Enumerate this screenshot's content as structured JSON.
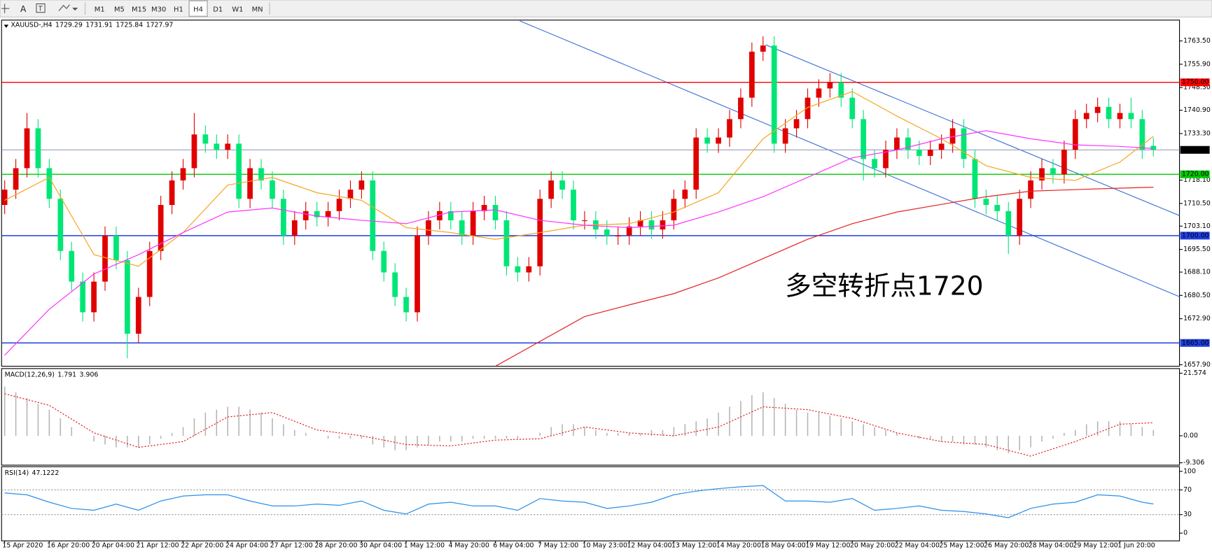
{
  "toolbar": {
    "timeframes": [
      "M1",
      "M5",
      "M15",
      "M30",
      "H1",
      "H4",
      "D1",
      "W1",
      "MN"
    ],
    "active": "H4"
  },
  "chart_data": [
    {
      "type": "candlestick",
      "symbol": "XAUUSD-,H4",
      "annotation": "多空转折点1720",
      "annotation_color": "#e8201a",
      "up_color": "#e00000",
      "down_color": "#00e676",
      "current_line_color": "#8c94b0",
      "ylim": [
        1657.4,
        1770.3
      ],
      "yticks": [
        {
          "value": 1763.5,
          "label": "1763.50"
        },
        {
          "value": 1755.9,
          "label": "1755.90"
        },
        {
          "value": 1748.3,
          "label": "1748.30"
        },
        {
          "value": 1740.9,
          "label": "1740.90"
        },
        {
          "value": 1733.3,
          "label": "1733.30"
        },
        {
          "value": 1718.1,
          "label": "1718.10"
        },
        {
          "value": 1710.5,
          "label": "1710.50"
        },
        {
          "value": 1703.1,
          "label": "1703.10"
        },
        {
          "value": 1695.5,
          "label": "1695.50"
        },
        {
          "value": 1688.1,
          "label": "1688.10"
        },
        {
          "value": 1680.5,
          "label": "1680.50"
        },
        {
          "value": 1672.9,
          "label": "1672.90"
        },
        {
          "value": 1657.9,
          "label": "1657.90"
        }
      ],
      "levels": [
        {
          "value": 1750,
          "label": "1750.00",
          "color": "#ff0000"
        },
        {
          "value": 1720,
          "label": "1720.00",
          "color": "#00c800"
        },
        {
          "value": 1700,
          "label": "1700.00",
          "color": "#1f3fe0"
        },
        {
          "value": 1665,
          "label": "1665.00",
          "color": "#1f3fe0"
        }
      ],
      "categories": [
        "15 Apr 2020",
        null,
        null,
        null,
        "16 Apr 20:00",
        null,
        null,
        null,
        "20 Apr 04:00",
        null,
        null,
        null,
        "21 Apr 12:00",
        null,
        null,
        null,
        "22 Apr 20:00",
        null,
        null,
        null,
        "24 Apr 04:00",
        null,
        null,
        null,
        "27 Apr 12:00",
        null,
        null,
        null,
        "28 Apr 20:00",
        null,
        null,
        null,
        "30 Apr 04:00",
        null,
        null,
        null,
        "1 May 12:00",
        null,
        null,
        null,
        "4 May 20:00",
        null,
        null,
        null,
        "6 May 04:00",
        null,
        null,
        null,
        "7 May 12:00",
        null,
        null,
        null,
        "10 May 23:00",
        null,
        null,
        null,
        "12 May 04:00",
        null,
        null,
        null,
        "13 May 12:00",
        null,
        null,
        null,
        "14 May 20:00",
        null,
        null,
        null,
        "18 May 04:00",
        null,
        null,
        null,
        "19 May 12:00",
        null,
        null,
        null,
        "20 May 20:00",
        null,
        null,
        null,
        "22 May 04:00",
        null,
        null,
        null,
        "25 May 12:00",
        null,
        null,
        null,
        "26 May 20:00",
        null,
        null,
        null,
        "28 May 04:00",
        null,
        null,
        null,
        "29 May 12:00",
        null,
        null,
        null,
        "1 Jun 20:00",
        null,
        null,
        null
      ],
      "open": [
        1710,
        1715,
        1722,
        1735,
        1722,
        1712,
        1695,
        1685,
        1675,
        1685,
        1700,
        1692,
        1668,
        1680,
        1695,
        1710,
        1718,
        1722,
        1733,
        1730,
        1728,
        1730,
        1712,
        1722,
        1718,
        1712,
        1700,
        1705,
        1708,
        1706,
        1708,
        1712,
        1715,
        1718,
        1695,
        1688,
        1680,
        1675,
        1700,
        1705,
        1708,
        1705,
        1700,
        1708,
        1710,
        1705,
        1690,
        1688,
        1690,
        1712,
        1718,
        1715,
        1705,
        1705,
        1702,
        1700,
        1700,
        1703,
        1705,
        1702,
        1705,
        1712,
        1715,
        1732,
        1730,
        1732,
        1738,
        1745,
        1760,
        1762,
        1730,
        1735,
        1738,
        1745,
        1748,
        1750,
        1745,
        1738,
        1725,
        1722,
        1728,
        1732,
        1728,
        1726,
        1728,
        1730,
        1735,
        1725,
        1712,
        1710,
        1708,
        1700,
        1712,
        1718,
        1722,
        1720,
        1728,
        1738,
        1740,
        1742,
        1738,
        1740,
        1738,
        1729.29
      ],
      "high": [
        1718,
        1725,
        1740,
        1738,
        1725,
        1715,
        1698,
        1688,
        1688,
        1703,
        1703,
        1695,
        1683,
        1698,
        1713,
        1721,
        1725,
        1740,
        1736,
        1733,
        1733,
        1733,
        1725,
        1725,
        1721,
        1715,
        1708,
        1711,
        1711,
        1711,
        1715,
        1718,
        1721,
        1721,
        1698,
        1691,
        1683,
        1703,
        1708,
        1711,
        1711,
        1708,
        1711,
        1713,
        1713,
        1708,
        1693,
        1693,
        1715,
        1721,
        1721,
        1718,
        1708,
        1708,
        1705,
        1703,
        1706,
        1708,
        1708,
        1708,
        1715,
        1718,
        1735,
        1735,
        1735,
        1741,
        1748,
        1763,
        1765,
        1765,
        1738,
        1741,
        1748,
        1751,
        1753,
        1753,
        1748,
        1741,
        1728,
        1731,
        1735,
        1735,
        1731,
        1731,
        1733,
        1738,
        1738,
        1728,
        1715,
        1713,
        1711,
        1715,
        1721,
        1725,
        1725,
        1731,
        1741,
        1743,
        1745,
        1745,
        1743,
        1745,
        1741,
        1731.91
      ],
      "low": [
        1707,
        1712,
        1719,
        1719,
        1709,
        1692,
        1682,
        1672,
        1672,
        1682,
        1689,
        1660,
        1665,
        1677,
        1692,
        1707,
        1715,
        1719,
        1727,
        1725,
        1725,
        1709,
        1709,
        1715,
        1709,
        1697,
        1697,
        1702,
        1703,
        1703,
        1705,
        1709,
        1712,
        1692,
        1685,
        1677,
        1672,
        1672,
        1697,
        1702,
        1702,
        1697,
        1697,
        1705,
        1702,
        1687,
        1685,
        1685,
        1687,
        1709,
        1712,
        1702,
        1702,
        1699,
        1697,
        1697,
        1697,
        1700,
        1699,
        1699,
        1702,
        1709,
        1712,
        1727,
        1727,
        1729,
        1735,
        1742,
        1757,
        1727,
        1727,
        1732,
        1735,
        1742,
        1745,
        1742,
        1735,
        1718,
        1719,
        1719,
        1725,
        1725,
        1723,
        1723,
        1725,
        1727,
        1722,
        1709,
        1707,
        1705,
        1694,
        1697,
        1709,
        1715,
        1717,
        1717,
        1725,
        1735,
        1737,
        1735,
        1735,
        1735,
        1725,
        1725.84
      ],
      "close": [
        1715,
        1722,
        1735,
        1722,
        1712,
        1695,
        1685,
        1675,
        1685,
        1700,
        1692,
        1668,
        1680,
        1695,
        1710,
        1718,
        1722,
        1733,
        1730,
        1728,
        1730,
        1712,
        1722,
        1718,
        1712,
        1700,
        1705,
        1708,
        1706,
        1708,
        1712,
        1715,
        1718,
        1695,
        1688,
        1680,
        1675,
        1700,
        1705,
        1708,
        1705,
        1700,
        1708,
        1710,
        1705,
        1690,
        1688,
        1690,
        1712,
        1718,
        1715,
        1705,
        1705,
        1702,
        1700,
        1700,
        1703,
        1705,
        1702,
        1705,
        1712,
        1715,
        1732,
        1730,
        1732,
        1738,
        1745,
        1760,
        1762,
        1730,
        1735,
        1738,
        1745,
        1748,
        1750,
        1745,
        1738,
        1725,
        1722,
        1728,
        1732,
        1728,
        1726,
        1728,
        1730,
        1735,
        1725,
        1712,
        1710,
        1708,
        1700,
        1712,
        1718,
        1722,
        1720,
        1728,
        1738,
        1740,
        1742,
        1738,
        1740,
        1738,
        1728,
        1727.97
      ],
      "series": [
        {
          "color": "#f5a623",
          "x": [
            0,
            4,
            8,
            12,
            16,
            20,
            24,
            28,
            32,
            36,
            40,
            44,
            48,
            52,
            56,
            60,
            64,
            68,
            72,
            76,
            80,
            84,
            88,
            92,
            96,
            100,
            103
          ],
          "values": [
            1711.5,
            1719,
            1693.8,
            1690,
            1701,
            1716.5,
            1719,
            1714,
            1711.5,
            1702.6,
            1701,
            1698.8,
            1701,
            1703.4,
            1703.9,
            1707.7,
            1714,
            1731.6,
            1741.8,
            1747,
            1739,
            1731.6,
            1722.8,
            1719,
            1718,
            1724,
            1732.4
          ]
        },
        {
          "color": "#ff33ff",
          "x": [
            0,
            4,
            8,
            12,
            16,
            20,
            24,
            28,
            32,
            36,
            40,
            44,
            48,
            52,
            56,
            60,
            64,
            68,
            72,
            76,
            80,
            84,
            88,
            92,
            96,
            100,
            103
          ],
          "values": [
            1661,
            1676,
            1687.5,
            1693.8,
            1701,
            1707.7,
            1709,
            1706.4,
            1705,
            1703.9,
            1707.7,
            1708.4,
            1705,
            1703.4,
            1702.6,
            1703.4,
            1707.7,
            1712.7,
            1719,
            1725.4,
            1727.9,
            1731.6,
            1734.2,
            1731.6,
            1729.6,
            1729.1,
            1728.4
          ]
        },
        {
          "color": "#e52222",
          "x": [
            44,
            52,
            56,
            60,
            64,
            68,
            72,
            76,
            80,
            84,
            88,
            92,
            96,
            100,
            103
          ],
          "values": [
            1657.4,
            1673.6,
            1677.4,
            1681.1,
            1686.2,
            1692.5,
            1698.8,
            1703.9,
            1707.7,
            1710.2,
            1712.7,
            1714.5,
            1715,
            1715.5,
            1715.8
          ]
        }
      ]
    },
    {
      "type": "bar",
      "title": "MACD(12,26,9)",
      "readout": [
        1.791,
        3.906
      ],
      "color": "#b4b4b4",
      "ylim": [
        -10.12,
        23.17
      ],
      "yticks": [
        21.574,
        {
          "value": 0,
          "label": "0.00"
        },
        -9.306
      ],
      "values": [
        17,
        15,
        13,
        11,
        9,
        6,
        3,
        0,
        -2,
        -3,
        -4,
        -4,
        -4,
        -3,
        -1,
        1,
        3,
        6,
        8,
        9,
        10,
        10,
        9,
        8,
        6,
        4,
        2,
        1,
        0,
        -1,
        -1,
        -1,
        -1,
        -3,
        -4,
        -5,
        -5,
        -4,
        -3,
        -2,
        -2,
        -2,
        -1,
        -1,
        -1,
        -1,
        -1,
        0,
        1,
        3,
        4,
        4,
        3,
        2,
        1,
        1,
        1,
        1,
        2,
        2,
        3,
        4,
        5,
        6,
        8,
        10,
        12,
        14,
        15,
        13,
        11,
        9,
        8,
        8,
        7,
        6,
        5,
        4,
        3,
        2,
        1,
        0,
        -1,
        -1,
        -2,
        -2,
        -3,
        -3,
        -4,
        -5,
        -6,
        -5,
        -4,
        -2,
        -1,
        1,
        2,
        4,
        5,
        5,
        5,
        4,
        3,
        2
      ],
      "series": [
        {
          "color": "#e52222",
          "dashed": true,
          "x": [
            0,
            4,
            8,
            12,
            16,
            20,
            24,
            28,
            32,
            36,
            40,
            44,
            48,
            52,
            56,
            60,
            64,
            68,
            72,
            76,
            80,
            84,
            88,
            92,
            96,
            100,
            103
          ],
          "values": [
            14.5,
            10.5,
            1,
            -4,
            -2,
            6.5,
            8,
            2,
            0,
            -3,
            -3.5,
            -1.5,
            -1,
            3,
            1,
            0,
            3,
            10,
            9,
            6,
            1,
            -2,
            -3,
            -7,
            -2,
            4,
            4.5
          ]
        }
      ]
    },
    {
      "type": "line",
      "title": "RSI(14)",
      "readout": [
        47.1222
      ],
      "ylim": [
        -12.5,
        107.5
      ],
      "yticks": [
        100,
        70,
        30,
        0
      ],
      "levels": [
        70,
        30
      ],
      "series": [
        {
          "color": "#2b8fe8",
          "x": [
            0,
            2,
            4,
            6,
            8,
            10,
            12,
            14,
            16,
            18,
            20,
            22,
            24,
            26,
            28,
            30,
            32,
            34,
            36,
            38,
            40,
            42,
            44,
            46,
            48,
            50,
            52,
            54,
            56,
            58,
            60,
            62,
            64,
            66,
            68,
            70,
            72,
            74,
            76,
            78,
            80,
            82,
            84,
            86,
            88,
            90,
            92,
            94,
            96,
            98,
            100,
            102,
            103
          ],
          "values": [
            65,
            62,
            50,
            40,
            37,
            47,
            37,
            52,
            60,
            62,
            62,
            52,
            44,
            44,
            47,
            45,
            52,
            37,
            31,
            47,
            50,
            44,
            44,
            37,
            56,
            52,
            50,
            40,
            44,
            50,
            62,
            68,
            72,
            75,
            77,
            52,
            52,
            50,
            56,
            37,
            40,
            44,
            37,
            35,
            31,
            25,
            40,
            47,
            50,
            62,
            60,
            50,
            47.1222
          ]
        }
      ]
    }
  ]
}
